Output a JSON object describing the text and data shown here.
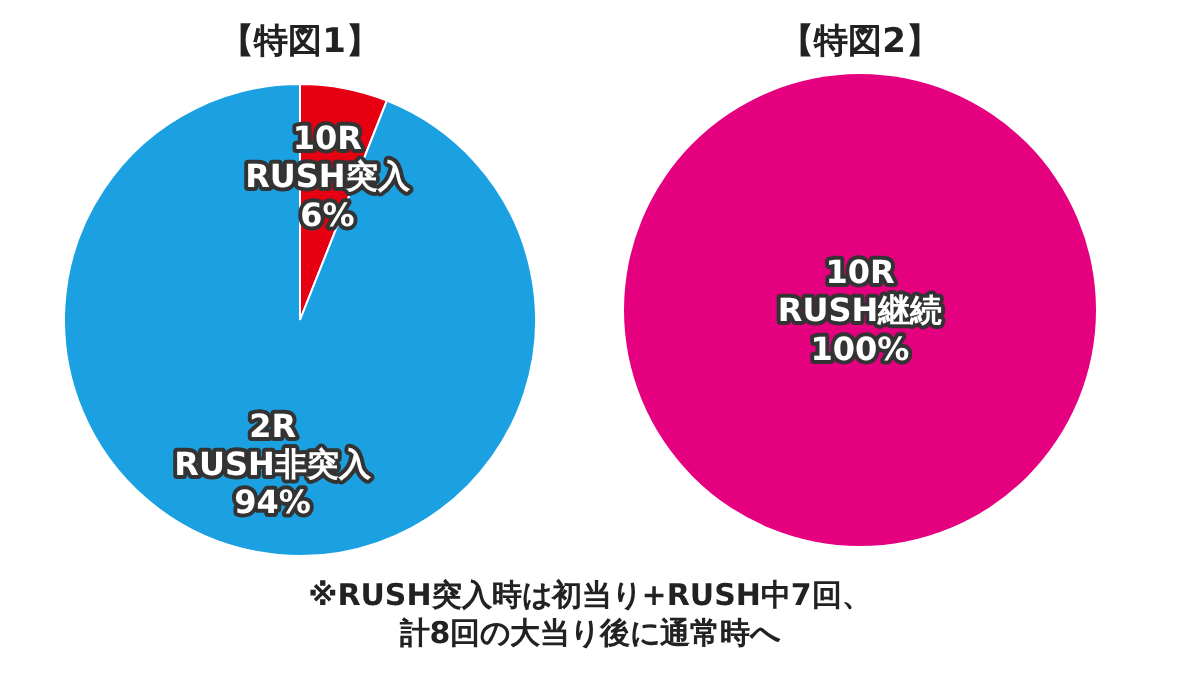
{
  "chart_data": [
    {
      "type": "pie",
      "title": "【特図1】",
      "categories": [
        "10R\nRUSH突入",
        "2R\nRUSH非突入"
      ],
      "values": [
        6,
        94
      ],
      "colors": [
        "#e60012",
        "#1ba1e2"
      ],
      "value_labels": [
        "6%",
        "94%"
      ],
      "annotations": [
        "※RUSH突入時は初当り+RUSH中7回、",
        "計8回の大当り後に通常時へ"
      ]
    },
    {
      "type": "pie",
      "title": "【特図2】",
      "categories": [
        "10R\nRUSH継続"
      ],
      "values": [
        100
      ],
      "colors": [
        "#e4007f"
      ],
      "value_labels": [
        "100%"
      ]
    }
  ]
}
